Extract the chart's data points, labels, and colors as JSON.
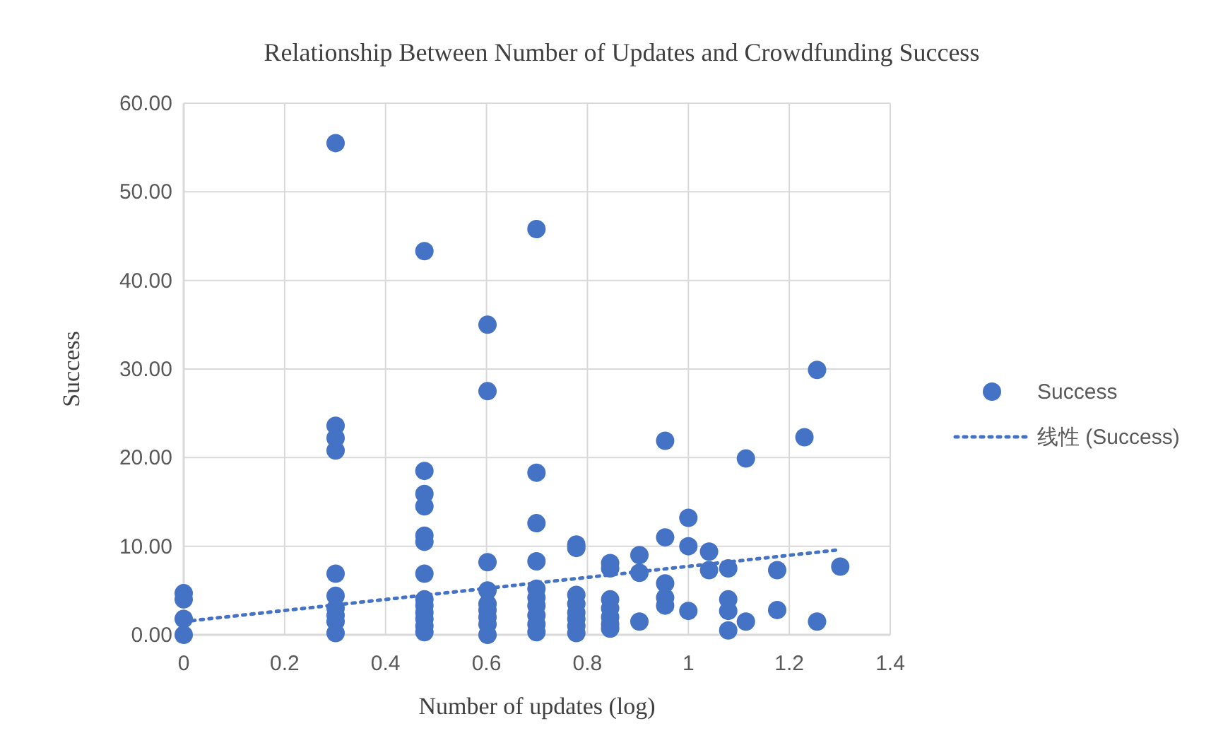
{
  "chart_data": {
    "type": "scatter",
    "title": "Relationship Between Number of Updates and Crowdfunding Success",
    "xlabel": "Number of updates (log)",
    "ylabel": "Success",
    "xlim": [
      0,
      1.4
    ],
    "xticks": [
      0,
      0.2,
      0.4,
      0.6,
      0.8,
      1,
      1.2,
      1.4
    ],
    "ylim": [
      0,
      60
    ],
    "yticks": [
      {
        "value": 0,
        "label": "0.00"
      },
      {
        "value": 10,
        "label": "10.00"
      },
      {
        "value": 20,
        "label": "20.00"
      },
      {
        "value": 30,
        "label": "30.00"
      },
      {
        "value": 40,
        "label": "40.00"
      },
      {
        "value": 50,
        "label": "50.00"
      },
      {
        "value": 60,
        "label": "60.00"
      }
    ],
    "grid": true,
    "legend": "right",
    "series": [
      {
        "name": "Success",
        "marker": "circle",
        "color": "#4472c4",
        "x": [
          0,
          0,
          0,
          0,
          0.301,
          0.301,
          0.301,
          0.301,
          0.301,
          0.301,
          0.301,
          0.301,
          0.301,
          0.301,
          0.477,
          0.477,
          0.477,
          0.477,
          0.477,
          0.477,
          0.477,
          0.477,
          0.477,
          0.477,
          0.477,
          0.477,
          0.477,
          0.602,
          0.602,
          0.602,
          0.602,
          0.602,
          0.602,
          0.602,
          0.602,
          0.602,
          0.699,
          0.699,
          0.699,
          0.699,
          0.699,
          0.699,
          0.699,
          0.699,
          0.699,
          0.699,
          0.778,
          0.778,
          0.778,
          0.778,
          0.778,
          0.778,
          0.778,
          0.778,
          0.845,
          0.845,
          0.845,
          0.845,
          0.845,
          0.845,
          0.845,
          0.903,
          0.903,
          0.903,
          0.954,
          0.954,
          0.954,
          0.954,
          0.954,
          1,
          1,
          1,
          1.041,
          1.041,
          1.079,
          1.079,
          1.079,
          1.079,
          1.114,
          1.114,
          1.176,
          1.176,
          1.23,
          1.255,
          1.255,
          1.301
        ],
        "values": [
          4.7,
          4,
          1.8,
          0,
          55.5,
          23.6,
          22.2,
          20.8,
          6.9,
          4.4,
          3,
          2.2,
          1.5,
          0.2,
          43.3,
          18.5,
          15.9,
          14.5,
          11.2,
          10.5,
          6.9,
          4,
          3.3,
          2.5,
          1.8,
          1,
          0.3,
          35,
          27.5,
          8.2,
          5,
          3.5,
          2.8,
          2,
          1.2,
          0,
          45.8,
          18.3,
          12.6,
          8.3,
          5.2,
          4.2,
          3.3,
          2.2,
          1.2,
          0.3,
          10.2,
          9.8,
          4.5,
          3.5,
          2.5,
          1.8,
          1,
          0.2,
          8.1,
          7.5,
          4,
          3,
          2,
          1.2,
          0.7,
          9,
          7,
          1.5,
          21.9,
          11,
          5.8,
          4.2,
          3.3,
          13.2,
          10,
          2.7,
          9.4,
          7.3,
          7.5,
          4,
          2.7,
          0.5,
          19.9,
          1.5,
          7.3,
          2.8,
          22.3,
          29.9,
          1.5,
          7.7
        ]
      },
      {
        "name": "线性 (Success)",
        "type": "line",
        "line_style": "dotted",
        "color": "#4472c4",
        "x": [
          0,
          1.3
        ],
        "values": [
          1.5,
          9.6
        ]
      }
    ]
  }
}
